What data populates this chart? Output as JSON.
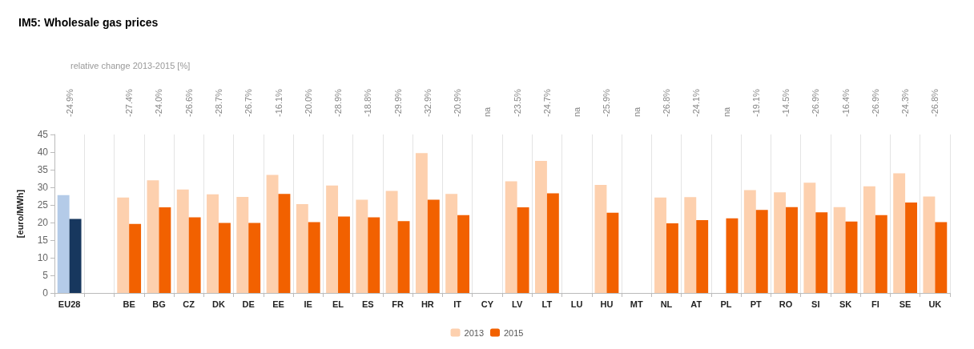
{
  "chart_data": {
    "type": "bar",
    "title": "IM5: Wholesale gas prices",
    "ylabel": "[euro/MWh]",
    "categories": [
      "EU28",
      null,
      "BE",
      "BG",
      "CZ",
      "DK",
      "DE",
      "EE",
      "IE",
      "EL",
      "ES",
      "FR",
      "HR",
      "IT",
      "CY",
      "LV",
      "LT",
      "LU",
      "HU",
      "MT",
      "NL",
      "AT",
      "PL",
      "PT",
      "RO",
      "SI",
      "SK",
      "FI",
      "SE",
      "UK"
    ],
    "series": [
      {
        "name": "2013",
        "color": "#fdd0ae",
        "colors": [
          "#b4cbe8",
          null,
          "#fdd0ae",
          "#fdd0ae",
          "#fdd0ae",
          "#fdd0ae",
          "#fdd0ae",
          "#fdd0ae",
          "#fdd0ae",
          "#fdd0ae",
          "#fdd0ae",
          "#fdd0ae",
          "#fdd0ae",
          "#fdd0ae",
          null,
          "#fdd0ae",
          "#fdd0ae",
          null,
          "#fdd0ae",
          null,
          "#fdd0ae",
          "#fdd0ae",
          null,
          "#fdd0ae",
          "#fdd0ae",
          "#fdd0ae",
          "#fdd0ae",
          "#fdd0ae",
          "#fdd0ae",
          "#fdd0ae"
        ],
        "values": [
          27.8,
          null,
          27.1,
          32.0,
          29.4,
          28.0,
          27.3,
          33.5,
          25.2,
          30.5,
          26.5,
          29.0,
          39.7,
          28.1,
          null,
          31.7,
          37.5,
          null,
          30.7,
          null,
          27.1,
          27.2,
          null,
          29.2,
          28.6,
          31.3,
          24.4,
          30.3,
          34.0,
          27.4
        ]
      },
      {
        "name": "2015",
        "color": "#f26100",
        "colors": [
          "#17375e",
          null,
          "#f26100",
          "#f26100",
          "#f26100",
          "#f26100",
          "#f26100",
          "#f26100",
          "#f26100",
          "#f26100",
          "#f26100",
          "#f26100",
          "#f26100",
          "#f26100",
          null,
          "#f26100",
          "#f26100",
          null,
          "#f26100",
          null,
          "#f26100",
          "#f26100",
          "#f26100",
          "#f26100",
          "#f26100",
          "#f26100",
          "#f26100",
          "#f26100",
          "#f26100",
          "#f26100"
        ],
        "values": [
          21.0,
          null,
          19.6,
          24.3,
          21.5,
          19.9,
          19.9,
          28.1,
          20.1,
          21.7,
          21.5,
          20.4,
          26.5,
          22.1,
          null,
          24.3,
          28.3,
          null,
          22.8,
          null,
          19.8,
          20.7,
          21.2,
          23.6,
          24.4,
          22.9,
          20.3,
          22.1,
          25.7,
          20.1
        ]
      }
    ],
    "ylim": [
      0,
      45
    ],
    "yticks": [
      0,
      5,
      10,
      15,
      20,
      25,
      30,
      35,
      40,
      45
    ],
    "grid": "x",
    "legend": "bottom",
    "annotations": [
      "relative change 2013-2015 [%]",
      "-24.9%",
      "-27.4%",
      "-24.0%",
      "-26.6%",
      "-28.7%",
      "-26.7%",
      "-16.1%",
      "-20.0%",
      "-28.9%",
      "-18.8%",
      "-29.9%",
      "-32.9%",
      "-20.9%",
      "na",
      "-23.5%",
      "-24.7%",
      "na",
      "-25.9%",
      "na",
      "-26.8%",
      "-24.1%",
      "na",
      "-19.1%",
      "-14.5%",
      "-26.9%",
      "-16.4%",
      "-26.9%",
      "-24.3%",
      "-26.8%"
    ]
  }
}
